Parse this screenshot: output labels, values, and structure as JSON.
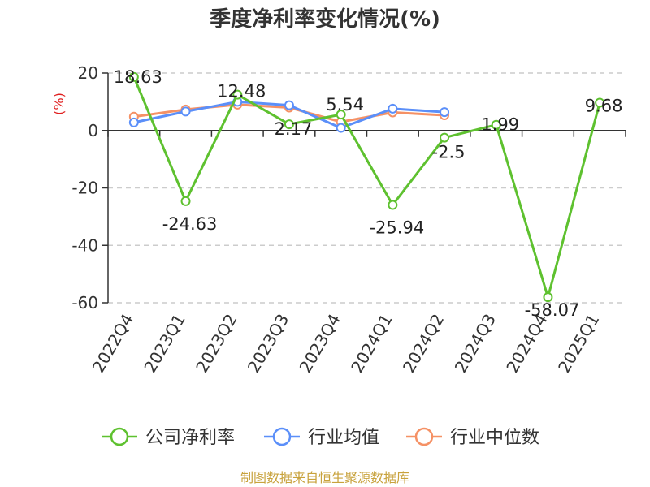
{
  "chart_data": {
    "type": "line",
    "title": "季度净利率变化情况(%)",
    "ylabel": "(%)",
    "xlabel": "",
    "categories": [
      "2022Q4",
      "2023Q1",
      "2023Q2",
      "2023Q3",
      "2023Q4",
      "2024Q1",
      "2024Q2",
      "2024Q3",
      "2024Q4",
      "2025Q1"
    ],
    "yticks": [
      20,
      0,
      -20,
      -40,
      -60
    ],
    "ylim": [
      -60,
      20
    ],
    "grid": true,
    "legend_position": "bottom",
    "series": [
      {
        "name": "公司净利率",
        "color": "#5ec12f",
        "values": [
          18.63,
          -24.63,
          12.48,
          2.17,
          5.54,
          -25.94,
          -2.5,
          1.99,
          -58.07,
          9.68
        ],
        "labels": [
          "18.63",
          "-24.63",
          "12.48",
          "2.17",
          "5.54",
          "-25.94",
          "-2.5",
          "1.99",
          "-58.07",
          "9.68"
        ]
      },
      {
        "name": "行业均值",
        "color": "#5b8ff9",
        "values": [
          2.8,
          6.6,
          10.0,
          8.8,
          0.9,
          7.6,
          6.4,
          null,
          null,
          null
        ]
      },
      {
        "name": "行业中位数",
        "color": "#f59165",
        "values": [
          4.8,
          7.3,
          9.0,
          8.0,
          3.0,
          6.3,
          5.3,
          null,
          null,
          null
        ]
      }
    ]
  },
  "footer": {
    "source": "制图数据来自恒生聚源数据库",
    "source_color": "#c8a23c"
  },
  "colors": {
    "ylabel": "#e02020",
    "axis": "#333333",
    "grid": "#cccccc"
  }
}
